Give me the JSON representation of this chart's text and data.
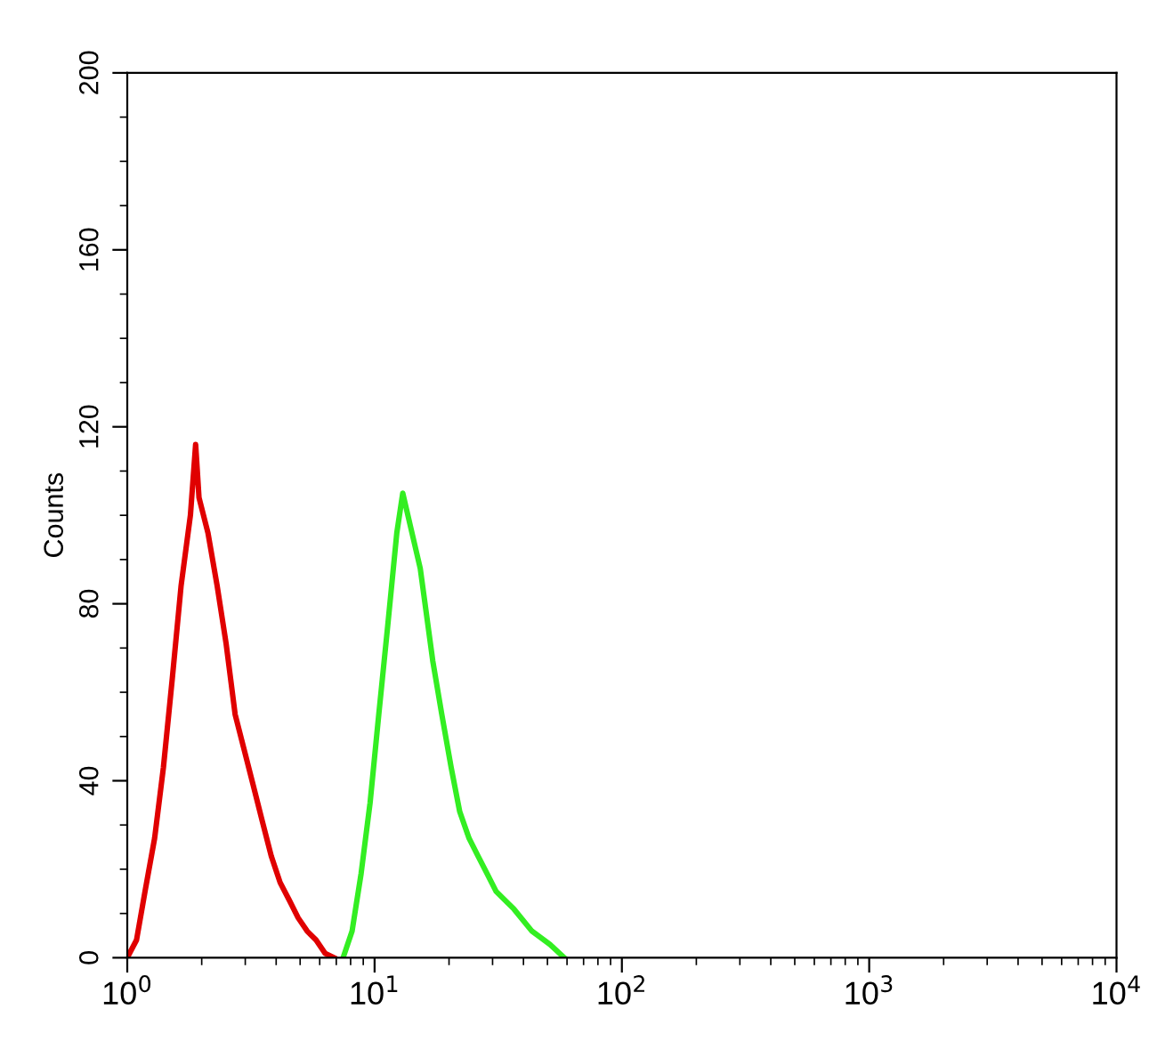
{
  "chart_data": {
    "type": "line",
    "ylabel": "Counts",
    "log": "x",
    "xlim": [
      1,
      10000
    ],
    "xticks": [
      {
        "value": 1,
        "label": "10$^{0}$"
      },
      {
        "value": 10,
        "label": "10$^{1}$"
      },
      {
        "value": 100,
        "label": "10$^{2}$"
      },
      {
        "value": 1000,
        "label": "10$^{3}$"
      },
      {
        "value": 10000,
        "label": "10$^{4}$"
      }
    ],
    "ylim": [
      0,
      200
    ],
    "yticks": [
      0,
      40,
      80,
      120,
      160,
      200
    ],
    "grid": false,
    "marker": "none",
    "line_style": "solid",
    "series": [
      {
        "color": "#e00000",
        "x": [
          1.0,
          1.09,
          1.18,
          1.29,
          1.4,
          1.52,
          1.65,
          1.8,
          1.89,
          1.95,
          2.12,
          2.31,
          2.51,
          2.73,
          2.97,
          3.23,
          3.51,
          3.82,
          4.15,
          4.52,
          4.91,
          5.34,
          5.8,
          6.31,
          6.86
        ],
        "values": [
          0,
          4,
          15,
          27,
          43,
          63,
          84,
          100,
          116,
          104,
          96,
          84,
          71,
          55,
          47,
          39,
          31,
          23,
          17,
          13,
          9,
          6,
          4,
          1,
          0
        ]
      },
      {
        "color": "#33ee22",
        "x": [
          7.46,
          8.11,
          8.82,
          9.59,
          10.4,
          11.3,
          12.3,
          13.0,
          13.9,
          15.3,
          17.2,
          18.7,
          20.4,
          22.1,
          24.1,
          26.2,
          28.5,
          31.0,
          36.6,
          43.3,
          51.2,
          58.5
        ],
        "values": [
          0,
          6,
          19,
          35,
          55,
          75,
          96,
          105,
          98,
          88,
          67,
          55,
          43,
          33,
          27,
          23,
          19,
          15,
          11,
          6,
          3,
          0
        ]
      }
    ]
  }
}
